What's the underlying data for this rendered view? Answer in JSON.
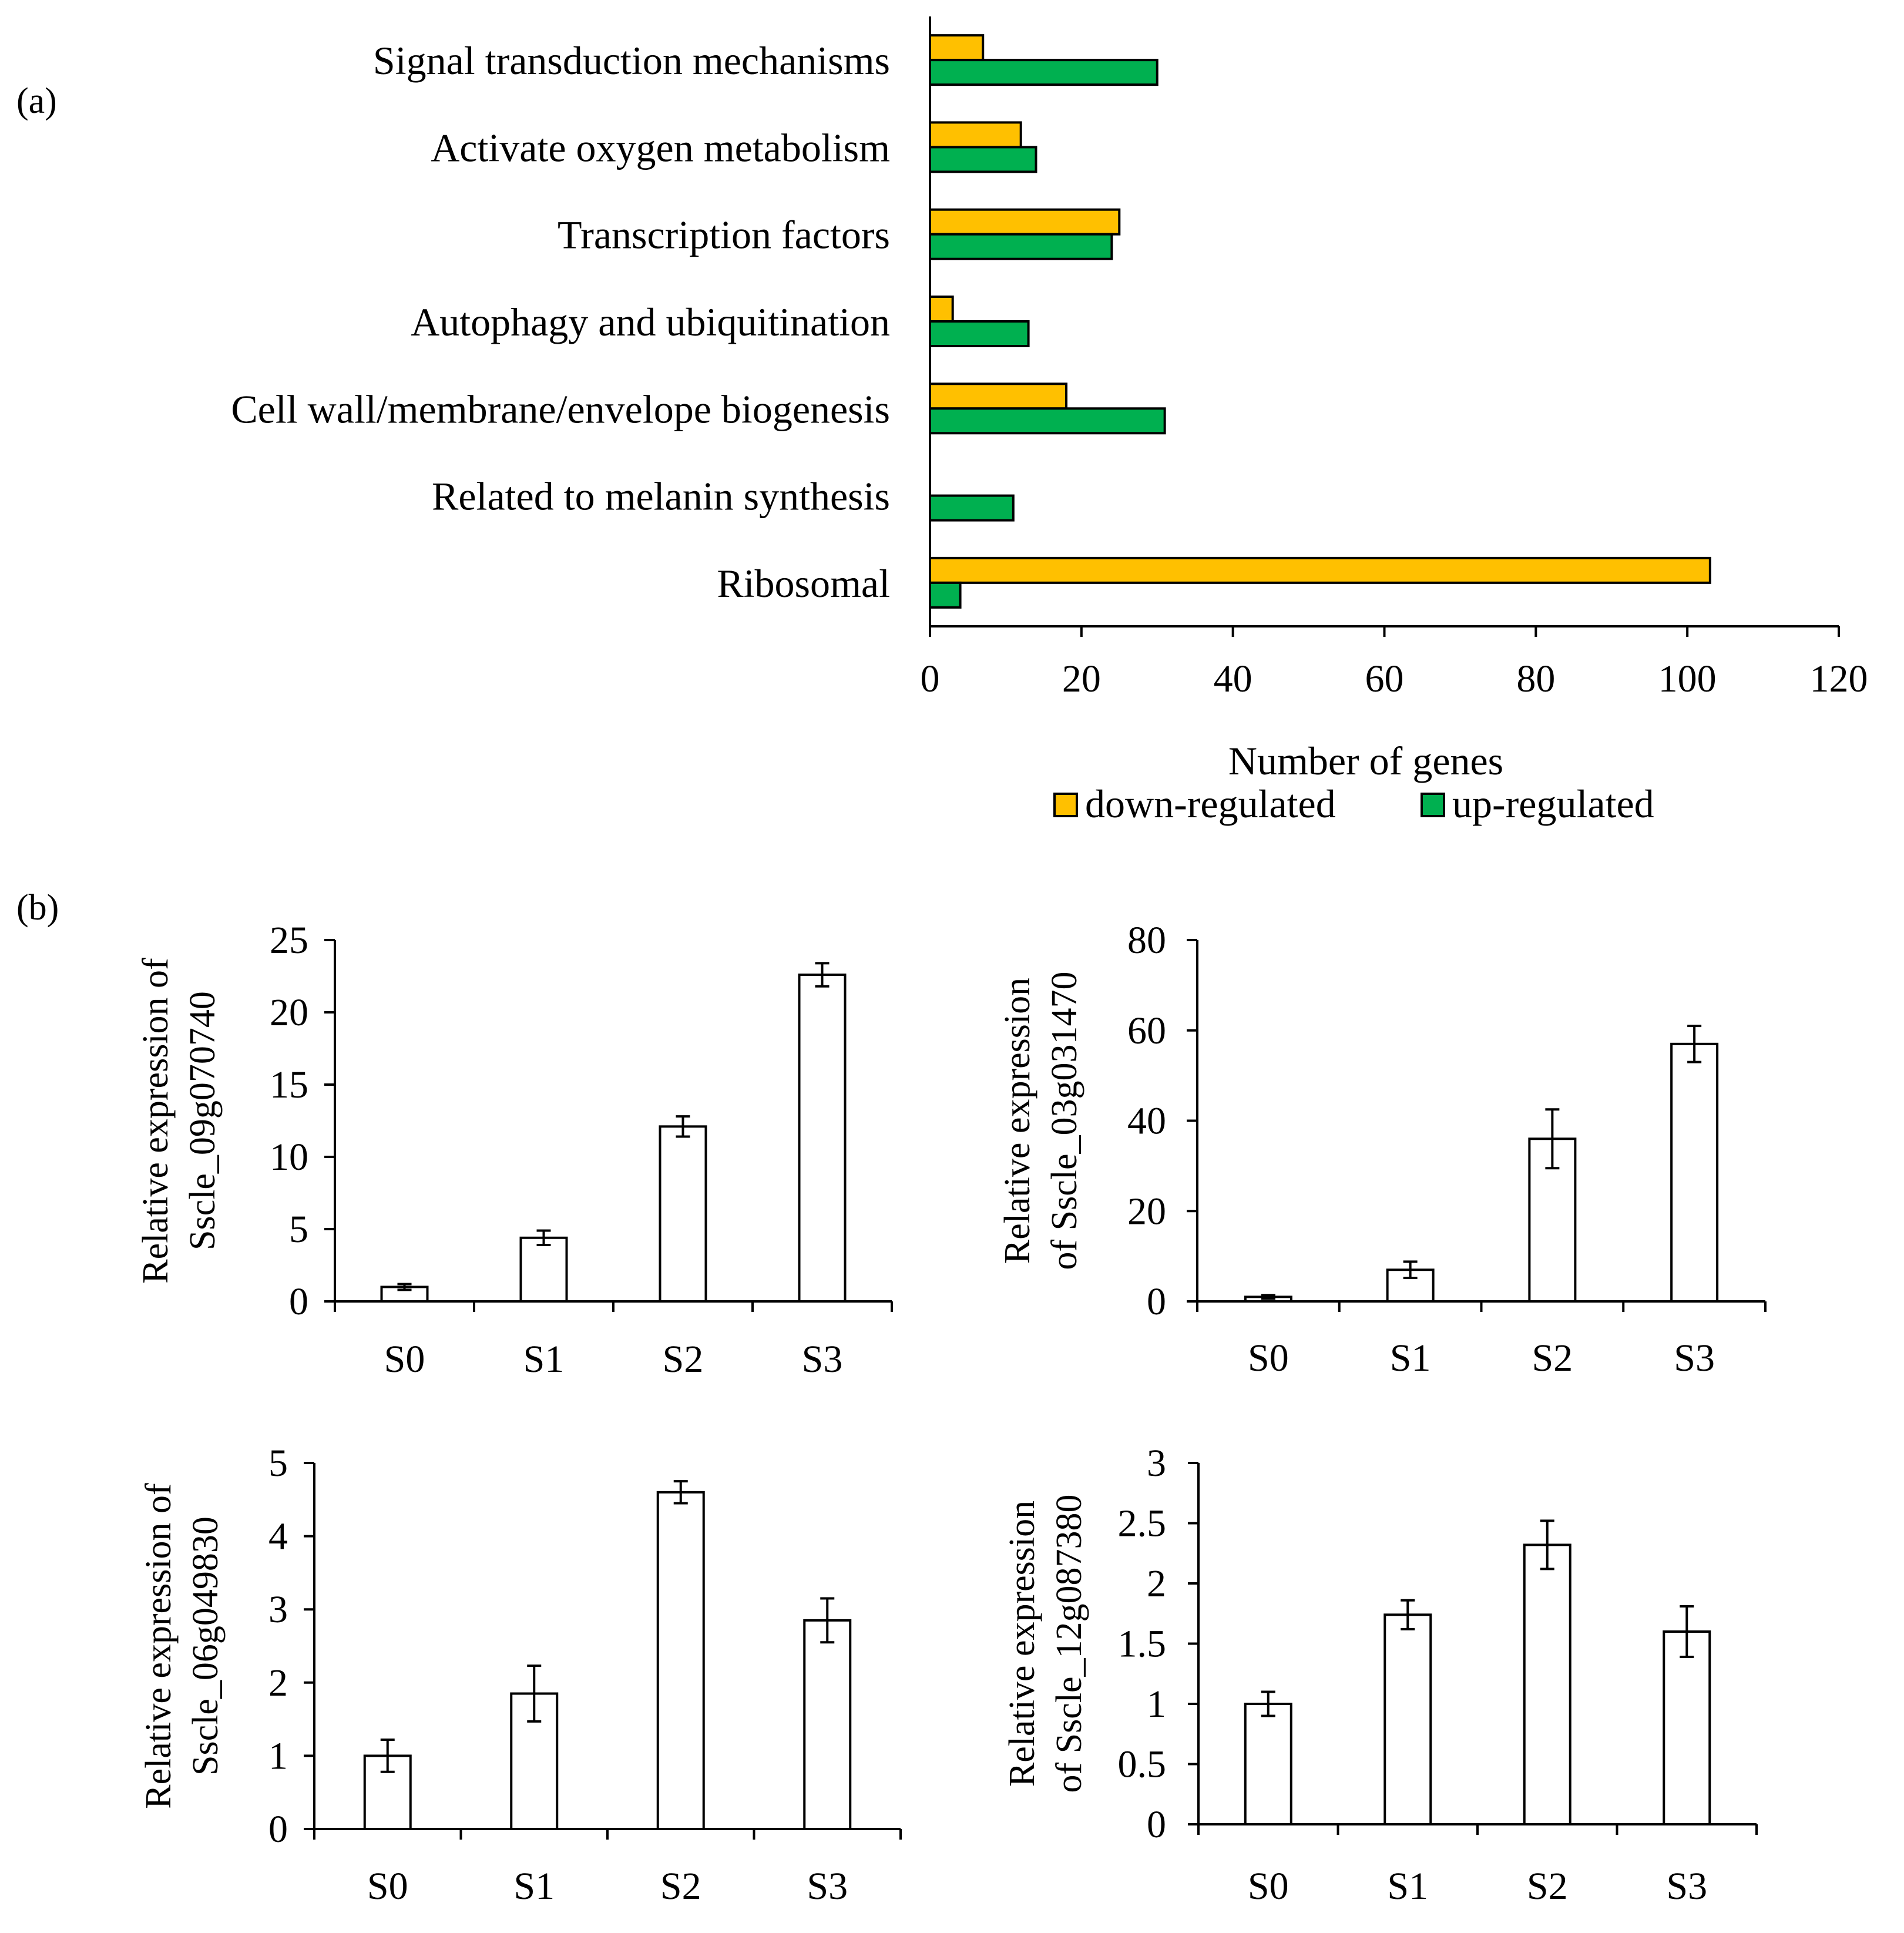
{
  "panel_a_label": "(a)",
  "panel_b_label": "(b)",
  "chart_data": [
    {
      "type": "bar",
      "orientation": "horizontal",
      "panel": "(a)",
      "categories": [
        "Signal transduction mechanisms",
        "Activate oxygen metabolism",
        "Transcription factors",
        "Autophagy and ubiquitination",
        "Cell wall/membrane/envelope biogenesis",
        "Related to melanin synthesis",
        "Ribosomal"
      ],
      "series": [
        {
          "name": "down-regulated",
          "color": "#FFC000",
          "values": [
            7,
            12,
            25,
            3,
            18,
            0,
            103
          ]
        },
        {
          "name": "up-regulated",
          "color": "#00B050",
          "values": [
            30,
            14,
            24,
            13,
            31,
            11,
            4
          ]
        }
      ],
      "xlabel": "Number of genes",
      "xlim": [
        0,
        120
      ],
      "xticks": [
        "0",
        "20",
        "40",
        "60",
        "80",
        "100",
        "120"
      ],
      "grid": false,
      "legend": "bottom"
    },
    {
      "type": "bar",
      "panel": "(b)",
      "categories": [
        "S0",
        "S1",
        "S2",
        "S3"
      ],
      "values": [
        1,
        4.4,
        12.1,
        22.6
      ],
      "errors": [
        0.2,
        0.5,
        0.7,
        0.8
      ],
      "ylabel": [
        "Relative expression of",
        "Sscle_09g070740"
      ],
      "ylim": [
        0,
        25
      ],
      "yticks": [
        "0",
        "5",
        "10",
        "15",
        "20",
        "25"
      ]
    },
    {
      "type": "bar",
      "panel": "(b)",
      "categories": [
        "S0",
        "S1",
        "S2",
        "S3"
      ],
      "values": [
        1,
        7,
        36,
        57
      ],
      "errors": [
        0.4,
        1.8,
        6.5,
        4
      ],
      "ylabel": [
        "Relative expression",
        "of  Sscle_03g031470"
      ],
      "ylim": [
        0,
        80
      ],
      "yticks": [
        "0",
        "20",
        "40",
        "60",
        "80"
      ]
    },
    {
      "type": "bar",
      "panel": "(b)",
      "categories": [
        "S0",
        "S1",
        "S2",
        "S3"
      ],
      "values": [
        1,
        1.85,
        4.6,
        2.85
      ],
      "errors": [
        0.22,
        0.38,
        0.15,
        0.3
      ],
      "ylabel": [
        "Relative expression of",
        "Sscle_06g049830"
      ],
      "ylim": [
        0,
        5
      ],
      "yticks": [
        "0",
        "1",
        "2",
        "3",
        "4",
        "5"
      ]
    },
    {
      "type": "bar",
      "panel": "(b)",
      "categories": [
        "S0",
        "S1",
        "S2",
        "S3"
      ],
      "values": [
        1,
        1.74,
        2.32,
        1.6
      ],
      "errors": [
        0.1,
        0.12,
        0.2,
        0.21
      ],
      "ylabel": [
        "Relative expression",
        "of  Sscle_12g087380"
      ],
      "ylim": [
        0,
        3
      ],
      "yticks": [
        "0",
        "0.5",
        "1",
        "1.5",
        "2",
        "2.5",
        "3"
      ]
    }
  ]
}
